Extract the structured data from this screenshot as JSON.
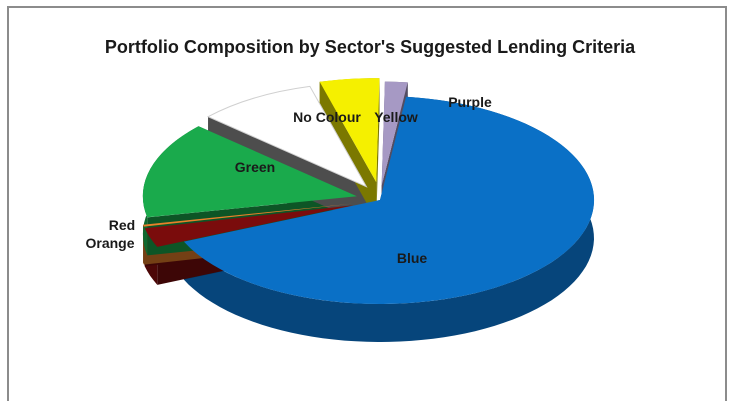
{
  "chart_data": {
    "type": "pie",
    "title": "Portfolio Composition by Sector's Suggested Lending Criteria",
    "categories": [
      "Blue",
      "Red",
      "Orange",
      "Green",
      "No Colour",
      "Yellow",
      "Purple"
    ],
    "values": [
      66.5,
      3,
      0.3,
      15,
      9,
      4.5,
      1.7
    ],
    "colors": {
      "Blue": "#0a70c6",
      "Red": "#7a0c0c",
      "Orange": "#e8802a",
      "Green": "#1aaa4c",
      "No Colour": "#ffffff",
      "Yellow": "#f5f000",
      "Purple": "#a699c4"
    },
    "labels": {
      "Blue": "Blue",
      "Red": "Red",
      "Orange": "Orange",
      "Green": "Green",
      "No Colour": "No Colour",
      "Yellow": "Yellow",
      "Purple": "Purple"
    },
    "legend": "none",
    "exploded": true,
    "style": "3d"
  }
}
